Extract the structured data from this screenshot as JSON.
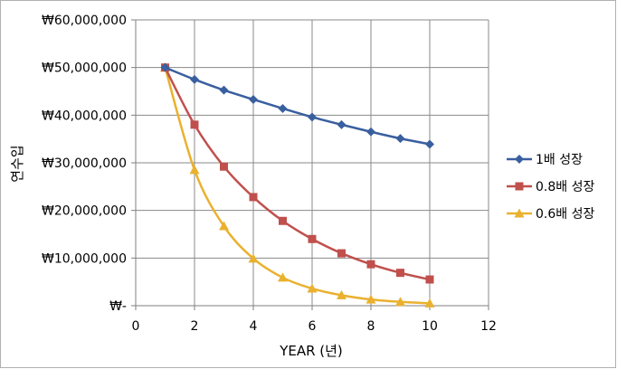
{
  "chart_data": {
    "type": "scatter",
    "title": "",
    "xlabel": "YEAR (년)",
    "ylabel": "연수입",
    "xlim": [
      0,
      12
    ],
    "ylim": [
      0,
      60000000
    ],
    "x_ticks": [
      0,
      2,
      4,
      6,
      8,
      10,
      12
    ],
    "y_ticks": [
      0,
      10000000,
      20000000,
      30000000,
      40000000,
      50000000,
      60000000
    ],
    "y_tick_labels": [
      "₩-",
      "₩10,000,000",
      "₩20,000,000",
      "₩30,000,000",
      "₩40,000,000",
      "₩50,000,000",
      "₩60,000,000"
    ],
    "grid": true,
    "legend_position": "right",
    "series": [
      {
        "name": "1배 성장",
        "color": "#3a5f9f",
        "marker": "diamond",
        "x": [
          1,
          2,
          3,
          4,
          5,
          6,
          7,
          8,
          9,
          10
        ],
        "values": [
          50000000,
          47500000,
          45250000,
          43300000,
          41400000,
          39600000,
          38000000,
          36500000,
          35100000,
          33900000
        ]
      },
      {
        "name": "0.8배 성장",
        "color": "#c0504d",
        "marker": "square",
        "x": [
          1,
          2,
          3,
          4,
          5,
          6,
          7,
          8,
          9,
          10
        ],
        "values": [
          50000000,
          38000000,
          29200000,
          22800000,
          17800000,
          14000000,
          11000000,
          8700000,
          6900000,
          5500000
        ]
      },
      {
        "name": "0.6배 성장",
        "color": "#eab12f",
        "marker": "triangle",
        "x": [
          1,
          2,
          3,
          4,
          5,
          6,
          7,
          8,
          9,
          10
        ],
        "values": [
          50000000,
          28500000,
          16700000,
          9900000,
          5900000,
          3600000,
          2200000,
          1300000,
          800000,
          500000
        ]
      }
    ]
  }
}
